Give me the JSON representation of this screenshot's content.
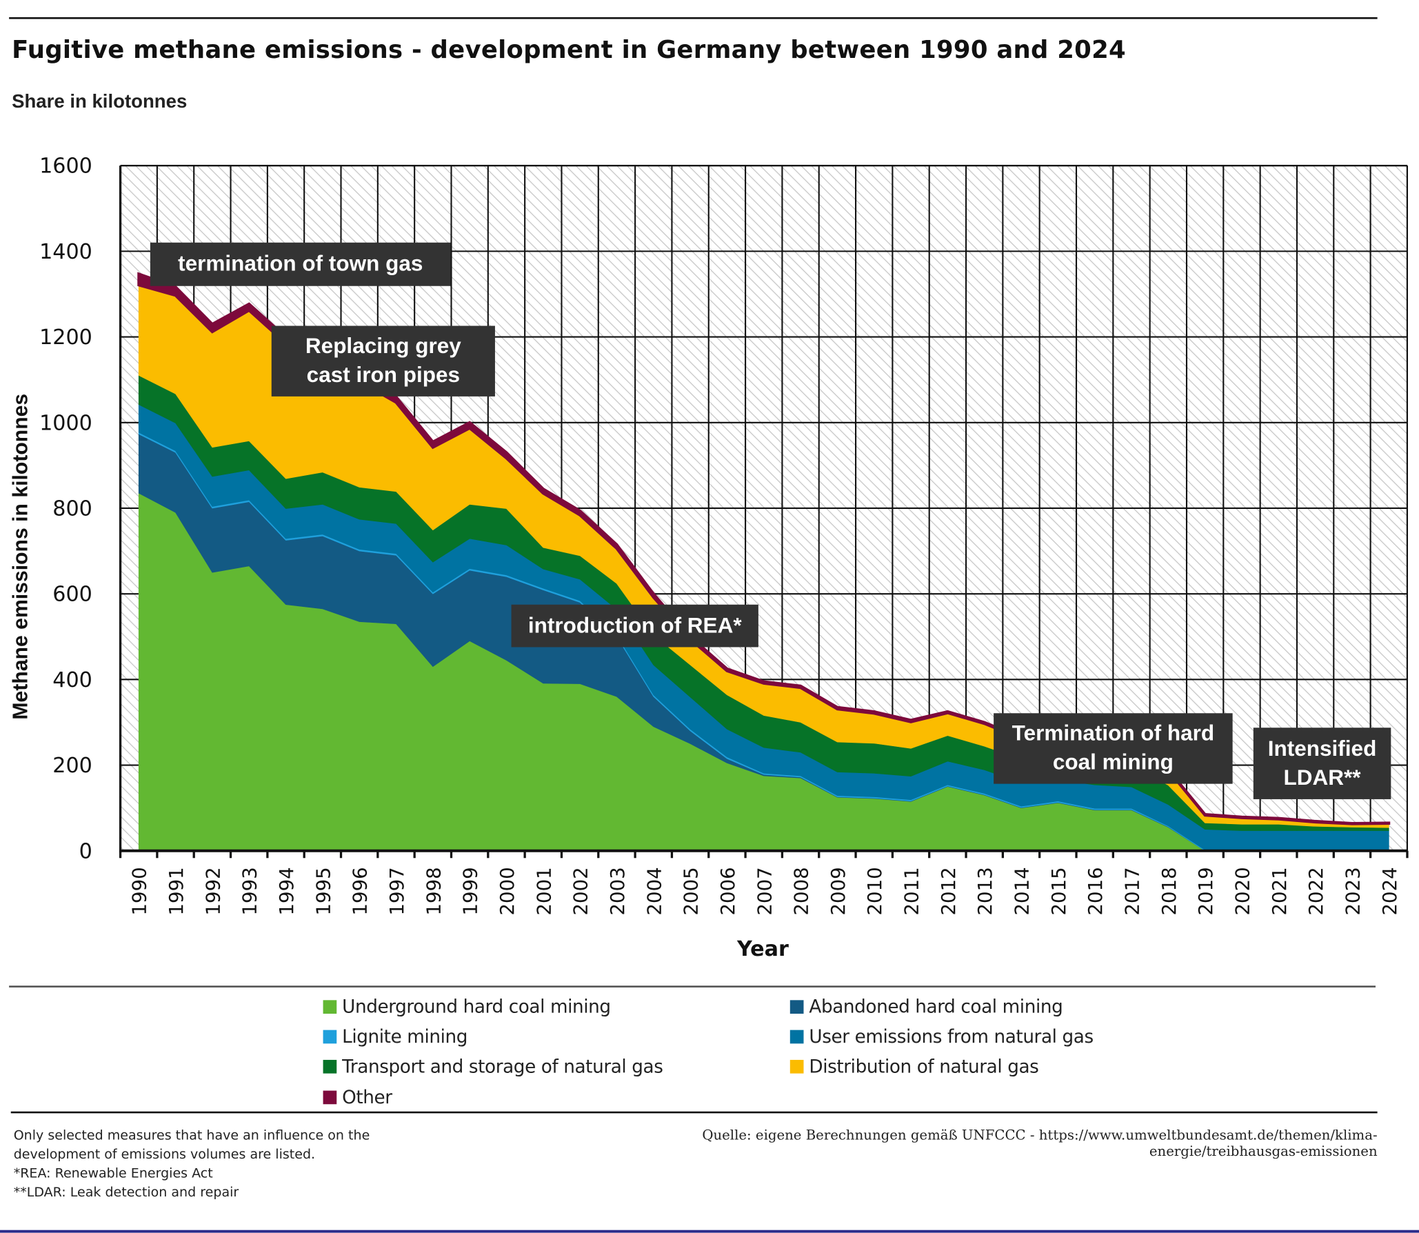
{
  "title": "Fugitive methane emissions - development in Germany between 1990 and 2024",
  "subtitle": "Share in kilotonnes",
  "chart_data": {
    "type": "area",
    "stacked": true,
    "title": "Fugitive methane emissions - development in Germany between 1990 and 2024",
    "subtitle": "Share in kilotonnes",
    "xlabel": "Year",
    "ylabel": "Methane emissions in kilotonnes",
    "ylim": [
      0,
      1600
    ],
    "yticks": [
      0,
      200,
      400,
      600,
      800,
      1000,
      1200,
      1400,
      1600
    ],
    "grid": true,
    "legend_position": "bottom",
    "categories": [
      "1990",
      "1991",
      "1992",
      "1993",
      "1994",
      "1995",
      "1996",
      "1997",
      "1998",
      "1999",
      "2000",
      "2001",
      "2002",
      "2003",
      "2004",
      "2005",
      "2006",
      "2007",
      "2008",
      "2009",
      "2010",
      "2011",
      "2012",
      "2013",
      "2014",
      "2015",
      "2016",
      "2017",
      "2018",
      "2019",
      "2020",
      "2021",
      "2022",
      "2023",
      "2024"
    ],
    "series": [
      {
        "name": "Underground hard coal mining",
        "color": "#62b832",
        "values": [
          835,
          790,
          650,
          665,
          575,
          565,
          535,
          530,
          430,
          490,
          445,
          391,
          390,
          360,
          290,
          250,
          205,
          175,
          170,
          125,
          122,
          115,
          150,
          130,
          100,
          112,
          95,
          95,
          55,
          0,
          0,
          0,
          0,
          0,
          0
        ]
      },
      {
        "name": "Abandoned hard coal mining",
        "color": "#135a84",
        "values": [
          138,
          140,
          150,
          150,
          150,
          170,
          165,
          160,
          170,
          165,
          195,
          218,
          190,
          140,
          70,
          30,
          10,
          3,
          2,
          1,
          1,
          1,
          1,
          1,
          1,
          1,
          1,
          1,
          1,
          0,
          0,
          0,
          0,
          0,
          0
        ]
      },
      {
        "name": "Lignite mining",
        "color": "#1fa0dc",
        "values": [
          4,
          4,
          4,
          4,
          4,
          4,
          4,
          4,
          4,
          4,
          4,
          4,
          4,
          4,
          4,
          4,
          4,
          3,
          3,
          3,
          3,
          3,
          3,
          3,
          3,
          3,
          3,
          3,
          2,
          2,
          2,
          2,
          2,
          2,
          2
        ]
      },
      {
        "name": "User emissions from natural gas",
        "color": "#0073a2",
        "values": [
          65,
          65,
          70,
          70,
          70,
          70,
          70,
          70,
          70,
          70,
          70,
          45,
          50,
          60,
          70,
          75,
          65,
          60,
          55,
          55,
          55,
          55,
          55,
          55,
          55,
          50,
          55,
          50,
          50,
          48,
          45,
          45,
          45,
          45,
          45
        ]
      },
      {
        "name": "Transport and storage of natural gas",
        "color": "#067328",
        "values": [
          68,
          68,
          68,
          68,
          70,
          75,
          75,
          75,
          75,
          80,
          85,
          50,
          55,
          60,
          70,
          75,
          80,
          75,
          70,
          70,
          70,
          65,
          60,
          55,
          55,
          55,
          55,
          50,
          45,
          15,
          15,
          15,
          10,
          8,
          7
        ]
      },
      {
        "name": "Distribution of natural gas",
        "color": "#fbbc00",
        "values": [
          211,
          230,
          270,
          305,
          316,
          252,
          247,
          208,
          193,
          178,
          118,
          127,
          95,
          82,
          88,
          60,
          56,
          75,
          81,
          77,
          70,
          62,
          53,
          53,
          48,
          46,
          43,
          38,
          35,
          18,
          15,
          12,
          10,
          8,
          10
        ]
      },
      {
        "name": "Other",
        "color": "#7d0a3c",
        "values": [
          26,
          20,
          18,
          15,
          15,
          14,
          14,
          13,
          13,
          13,
          13,
          10,
          10,
          9,
          8,
          6,
          5,
          4,
          4,
          4,
          4,
          4,
          3,
          3,
          3,
          3,
          3,
          3,
          2,
          2,
          2,
          2,
          2,
          1,
          1
        ]
      }
    ],
    "annotations": [
      {
        "text": "termination of town gas",
        "year": "1992"
      },
      {
        "text": "Replacing grey cast iron pipes",
        "year": "1997"
      },
      {
        "text": "introduction of REA*",
        "year": "2004"
      },
      {
        "text": "Termination of hard coal mining",
        "year": "2018"
      },
      {
        "text": "Intensified LDAR**",
        "year": "2022"
      }
    ]
  },
  "annotations": {
    "town_gas": "termination of town gas",
    "grey_pipes_1": "Replacing grey",
    "grey_pipes_2": "cast iron pipes",
    "rea": "introduction of REA*",
    "hard_coal_1": "Termination of hard",
    "hard_coal_2": "coal mining",
    "ldar_1": "Intensified",
    "ldar_2": "LDAR**"
  },
  "footnotes": {
    "line1": "Only selected measures that have an influence on the",
    "line2": "development of emissions volumes are listed.",
    "line3": "*REA: Renewable Energies Act",
    "line4": "**LDAR: Leak detection and repair"
  },
  "source": {
    "line1": "Quelle: eigene Berechnungen gemäß UNFCCC - https://www.umweltbundesamt.de/themen/klima-",
    "line2": "energie/treibhausgas-emissionen"
  }
}
